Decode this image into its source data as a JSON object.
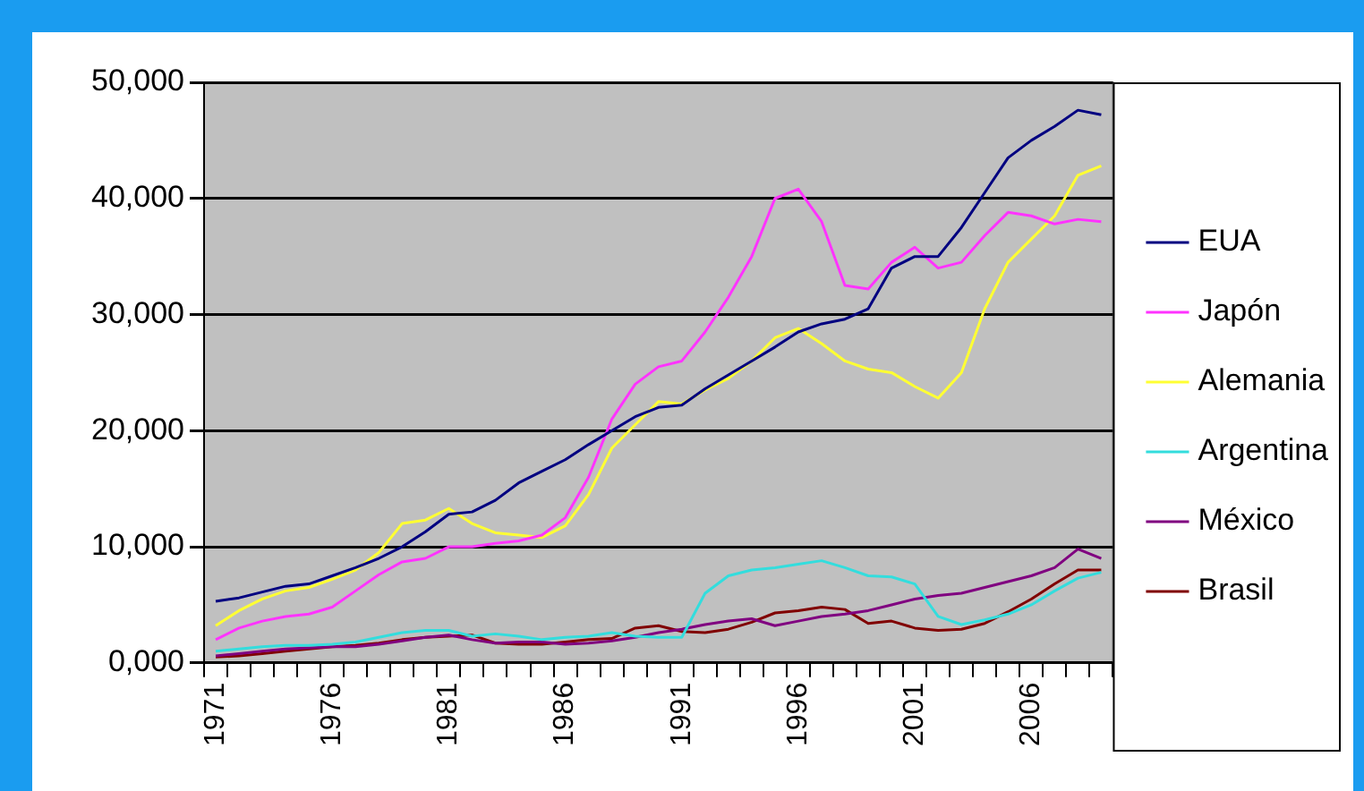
{
  "chart_data": {
    "type": "line",
    "categories": [
      "1971",
      null,
      null,
      null,
      null,
      "1976",
      null,
      null,
      null,
      null,
      "1981",
      null,
      null,
      null,
      null,
      "1986",
      null,
      null,
      null,
      null,
      "1991",
      null,
      null,
      null,
      null,
      "1996",
      null,
      null,
      null,
      null,
      "2001",
      null,
      null,
      null,
      null,
      "2006",
      null,
      null,
      null
    ],
    "series": [
      {
        "name": "EUA",
        "color": "#000080",
        "values": [
          5300,
          5600,
          6100,
          6600,
          6800,
          7500,
          8200,
          9000,
          10000,
          11300,
          12800,
          13000,
          14000,
          15500,
          16500,
          17500,
          18800,
          20000,
          21200,
          22000,
          22200,
          23600,
          24800,
          26000,
          27200,
          28500,
          29200,
          29600,
          30500,
          34000,
          35000,
          35000,
          37500,
          40500,
          43500,
          45000,
          46200,
          47600,
          47200
        ]
      },
      {
        "name": "Japón",
        "color": "#ff33ff",
        "values": [
          2000,
          3000,
          3600,
          4000,
          4200,
          4800,
          6200,
          7600,
          8700,
          9000,
          10000,
          10000,
          10300,
          10500,
          11000,
          12500,
          16000,
          21000,
          24000,
          25500,
          26000,
          28500,
          31500,
          35000,
          40000,
          40800,
          38000,
          32500,
          32200,
          34500,
          35800,
          34000,
          34500,
          36800,
          38800,
          38500,
          37800,
          38200,
          38000
        ]
      },
      {
        "name": "Alemania",
        "color": "#ffff33",
        "values": [
          3200,
          4500,
          5500,
          6200,
          6500,
          7200,
          8000,
          9500,
          12000,
          12300,
          13300,
          12000,
          11200,
          11000,
          10800,
          11800,
          14500,
          18500,
          20500,
          22500,
          22300,
          23500,
          24500,
          26000,
          28000,
          28800,
          27500,
          26000,
          25300,
          25000,
          23800,
          22800,
          25000,
          30500,
          34500,
          36500,
          38500,
          42000,
          42800
        ]
      },
      {
        "name": "Argentina",
        "color": "#33dddd",
        "values": [
          1000,
          1200,
          1400,
          1500,
          1500,
          1600,
          1800,
          2200,
          2600,
          2800,
          2800,
          2300,
          2500,
          2300,
          2000,
          2200,
          2300,
          2600,
          2300,
          2200,
          2200,
          6000,
          7500,
          8000,
          8200,
          8500,
          8800,
          8200,
          7500,
          7400,
          6800,
          4000,
          3300,
          3700,
          4200,
          5000,
          6200,
          7300,
          7800
        ]
      },
      {
        "name": "México",
        "color": "#800080",
        "values": [
          600,
          800,
          1000,
          1200,
          1300,
          1400,
          1400,
          1600,
          1900,
          2200,
          2400,
          2000,
          1700,
          1800,
          1800,
          1600,
          1700,
          1900,
          2200,
          2600,
          2900,
          3300,
          3600,
          3800,
          3200,
          3600,
          4000,
          4200,
          4500,
          5000,
          5500,
          5800,
          6000,
          6500,
          7000,
          7500,
          8200,
          9800,
          9000
        ]
      },
      {
        "name": "Brasil",
        "color": "#800000",
        "values": [
          500,
          600,
          800,
          1000,
          1200,
          1400,
          1500,
          1700,
          2000,
          2200,
          2300,
          2400,
          1700,
          1600,
          1600,
          1800,
          2000,
          2100,
          3000,
          3200,
          2700,
          2600,
          2900,
          3500,
          4300,
          4500,
          4800,
          4600,
          3400,
          3600,
          3000,
          2800,
          2900,
          3400,
          4400,
          5500,
          6800,
          8000,
          8000
        ]
      }
    ],
    "ylim": [
      0,
      50000
    ],
    "yticks": [
      {
        "value": 0,
        "label": "0,000"
      },
      {
        "value": 10000,
        "label": "10,000"
      },
      {
        "value": 20000,
        "label": "20,000"
      },
      {
        "value": 30000,
        "label": "30,000"
      },
      {
        "value": 40000,
        "label": "40,000"
      },
      {
        "value": 50000,
        "label": "50,000"
      }
    ],
    "grid": "y",
    "legend": "right",
    "marker": "none",
    "line_style": "solid"
  }
}
